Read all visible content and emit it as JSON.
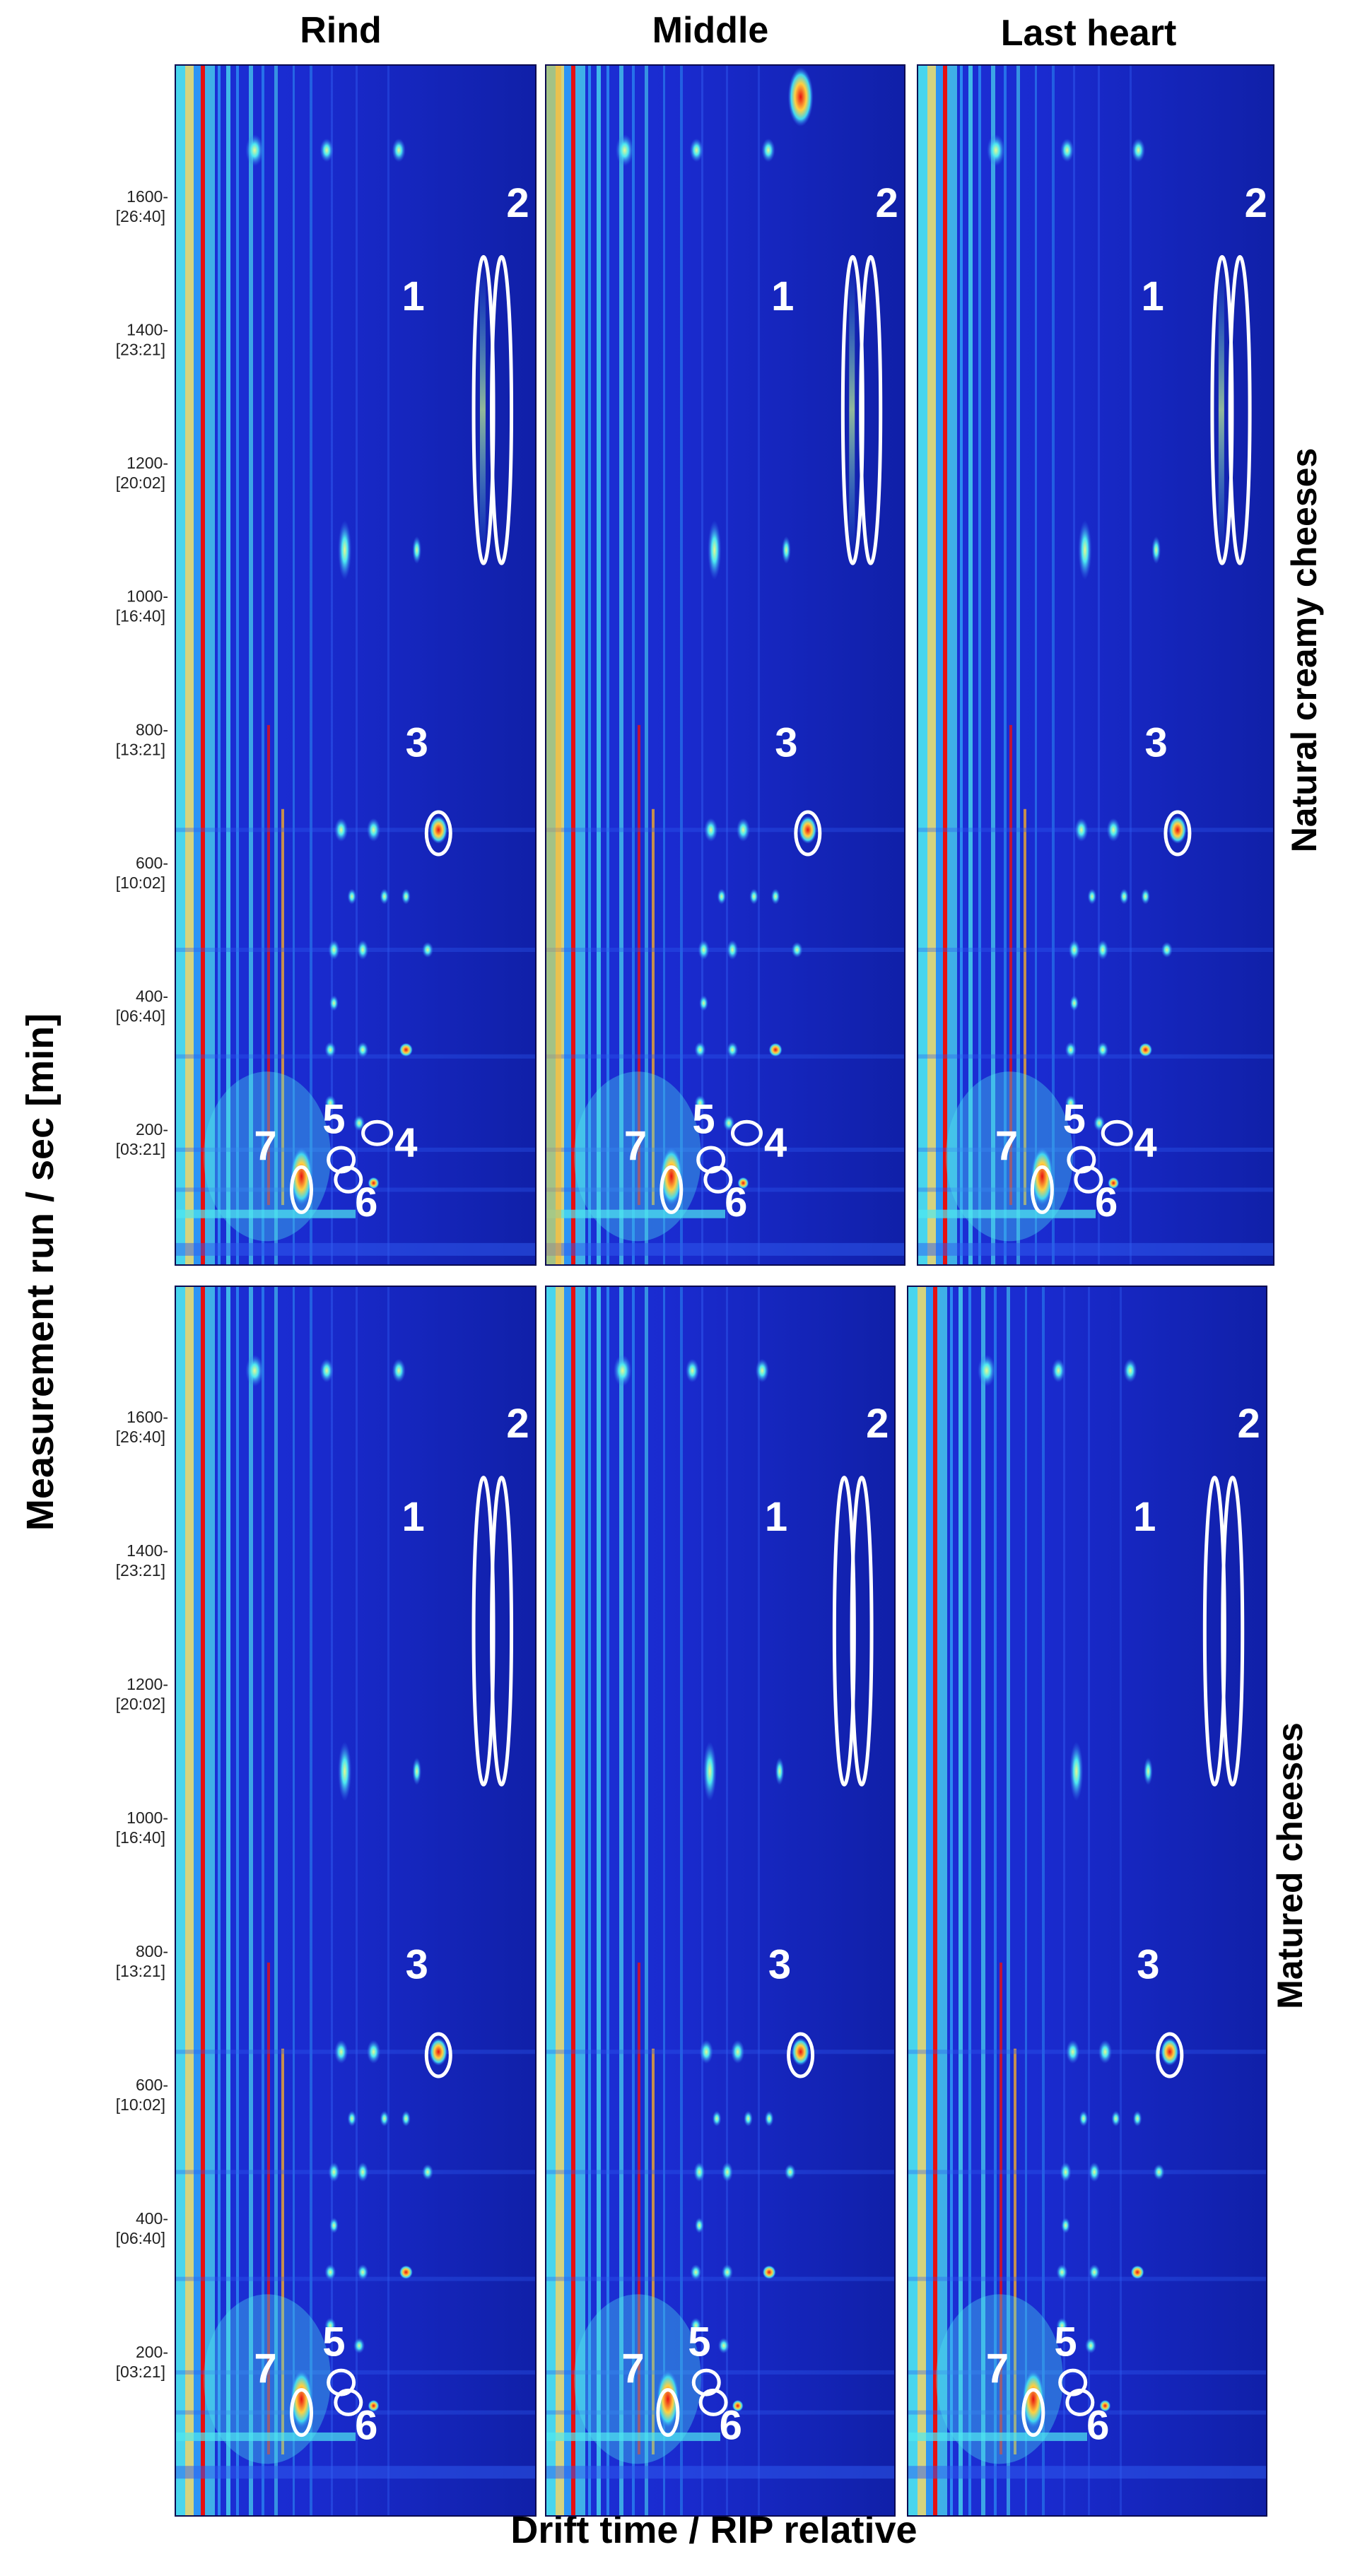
{
  "chart_data": {
    "type": "heatmap",
    "description_title": "GC-IMS topographic plots",
    "columns": [
      "Rind",
      "Middle",
      "Last heart"
    ],
    "rows": [
      "Natural creamy cheeses",
      "Matured cheeses"
    ],
    "xlabel": "Drift time / RIP relative",
    "ylabel": "Measurement run / sec [min]",
    "ylim": [
      0,
      1800
    ],
    "yticks": [
      {
        "value": 1600,
        "label": "1600",
        "sublabel": "[26:40]"
      },
      {
        "value": 1400,
        "label": "1400",
        "sublabel": "[23:21]"
      },
      {
        "value": 1200,
        "label": "1200",
        "sublabel": "[20:02]"
      },
      {
        "value": 1000,
        "label": "1000",
        "sublabel": "[16:40]"
      },
      {
        "value": 800,
        "label": "800",
        "sublabel": "[13:21]"
      },
      {
        "value": 600,
        "label": "600",
        "sublabel": "[10:02]"
      },
      {
        "value": 400,
        "label": "400",
        "sublabel": "[06:40]"
      },
      {
        "value": 200,
        "label": "200",
        "sublabel": "[03:21]"
      }
    ],
    "annotations_top": [
      "1",
      "2",
      "3",
      "4",
      "5",
      "6",
      "7"
    ],
    "annotations_bottom": [
      "1",
      "2",
      "3",
      "5",
      "6",
      "7"
    ],
    "colormap": [
      "#0a0a8c",
      "#1424c8",
      "#2f5cf0",
      "#2fa0f8",
      "#4ee8f0",
      "#f4f070",
      "#ffb020",
      "#e81010"
    ]
  }
}
